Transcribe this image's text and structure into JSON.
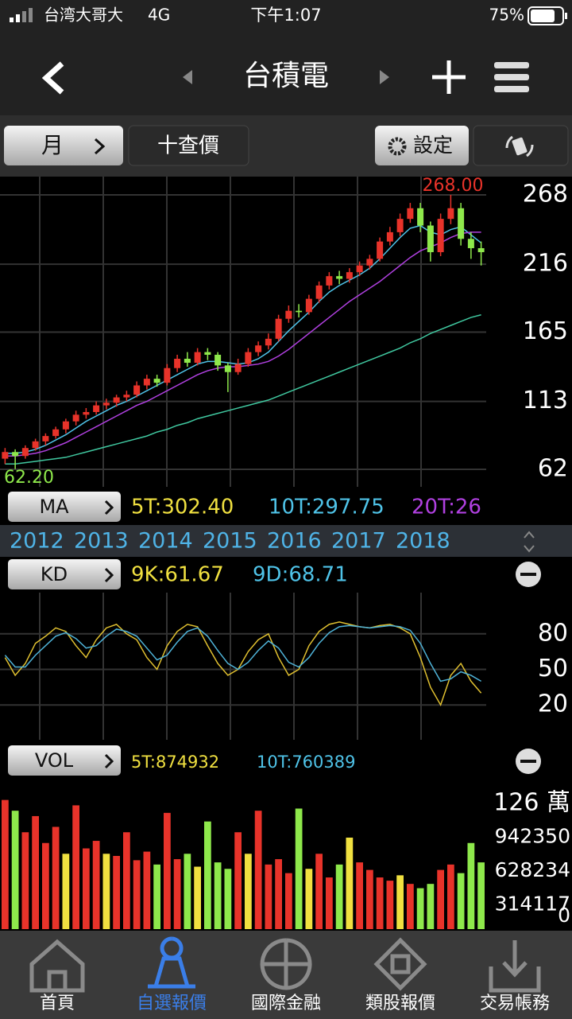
{
  "status_bar": {
    "carrier": "台湾大哥大",
    "network": "4G",
    "time": "下午1:07",
    "battery": "75%"
  },
  "nav": {
    "title": "台積電"
  },
  "toolbar": {
    "period": "月",
    "quote": "十查價",
    "settings": "設定"
  },
  "price_chart": {
    "type": "candlestick",
    "high_label": "268.00",
    "low_label": "62.20",
    "ylim": [
      62,
      268
    ],
    "yticks": [
      62,
      113,
      165,
      216,
      268
    ],
    "up_color": "#e8332a",
    "down_color": "#8ee84b",
    "candles": [
      [
        70,
        78,
        66,
        75
      ],
      [
        75,
        77,
        62.2,
        72
      ],
      [
        72,
        80,
        70,
        78
      ],
      [
        78,
        85,
        76,
        83
      ],
      [
        83,
        89,
        80,
        87
      ],
      [
        87,
        94,
        85,
        92
      ],
      [
        92,
        100,
        89,
        98
      ],
      [
        98,
        106,
        95,
        103
      ],
      [
        103,
        108,
        100,
        105
      ],
      [
        105,
        113,
        103,
        110
      ],
      [
        110,
        115,
        107,
        112
      ],
      [
        112,
        118,
        109,
        116
      ],
      [
        116,
        121,
        113,
        118
      ],
      [
        118,
        128,
        116,
        125
      ],
      [
        125,
        133,
        122,
        130
      ],
      [
        130,
        133,
        124,
        127
      ],
      [
        127,
        141,
        125,
        138
      ],
      [
        138,
        148,
        135,
        145
      ],
      [
        145,
        150,
        139,
        142
      ],
      [
        142,
        153,
        140,
        150
      ],
      [
        150,
        153,
        144,
        148
      ],
      [
        148,
        150,
        136,
        140
      ],
      [
        140,
        142,
        120,
        135
      ],
      [
        135,
        145,
        133,
        141
      ],
      [
        141,
        153,
        139,
        150
      ],
      [
        150,
        158,
        147,
        155
      ],
      [
        155,
        164,
        152,
        160
      ],
      [
        160,
        178,
        158,
        175
      ],
      [
        175,
        185,
        172,
        181
      ],
      [
        181,
        186,
        176,
        180
      ],
      [
        180,
        193,
        178,
        190
      ],
      [
        190,
        203,
        187,
        200
      ],
      [
        200,
        210,
        197,
        207
      ],
      [
        207,
        211,
        201,
        205
      ],
      [
        205,
        213,
        202,
        210
      ],
      [
        210,
        218,
        207,
        215
      ],
      [
        215,
        223,
        212,
        220
      ],
      [
        220,
        236,
        218,
        233
      ],
      [
        233,
        244,
        230,
        240
      ],
      [
        240,
        254,
        237,
        250
      ],
      [
        250,
        262,
        247,
        258
      ],
      [
        258,
        262,
        240,
        245
      ],
      [
        245,
        248,
        218,
        225
      ],
      [
        225,
        254,
        222,
        250
      ],
      [
        250,
        268,
        246,
        258
      ],
      [
        258,
        262,
        230,
        235
      ],
      [
        235,
        240,
        220,
        228
      ],
      [
        228,
        233,
        215,
        225
      ]
    ],
    "ma_lines": [
      {
        "color": "#4fc3e8",
        "values": [
          74,
          74,
          75,
          77,
          80,
          84,
          88,
          93,
          98,
          102,
          106,
          110,
          113,
          117,
          121,
          125,
          129,
          133,
          137,
          141,
          143,
          143,
          142,
          141,
          142,
          145,
          150,
          158,
          166,
          173,
          180,
          188,
          195,
          200,
          204,
          208,
          213,
          220,
          228,
          236,
          243,
          245,
          240,
          238,
          242,
          244,
          238,
          232
        ]
      },
      {
        "color": "#b040e0",
        "values": [
          72,
          72,
          73,
          74,
          76,
          79,
          82,
          86,
          90,
          94,
          98,
          102,
          106,
          110,
          113,
          117,
          121,
          125,
          129,
          133,
          136,
          138,
          139,
          139,
          140,
          141,
          143,
          147,
          152,
          158,
          164,
          170,
          176,
          182,
          188,
          193,
          198,
          203,
          209,
          215,
          221,
          226,
          229,
          232,
          236,
          239,
          240,
          240
        ]
      },
      {
        "color": "#40c8a0",
        "values": [
          66,
          66,
          67,
          68,
          69,
          70,
          71,
          73,
          75,
          77,
          79,
          81,
          83,
          85,
          87,
          90,
          92,
          95,
          97,
          100,
          102,
          104,
          106,
          108,
          110,
          112,
          114,
          117,
          120,
          123,
          126,
          129,
          132,
          135,
          138,
          141,
          144,
          147,
          150,
          153,
          157,
          160,
          164,
          167,
          170,
          173,
          176,
          178
        ]
      }
    ]
  },
  "ma_bar": {
    "button": "MA",
    "items": [
      {
        "label": "5T:302.40",
        "color": "#f0e040"
      },
      {
        "label": "10T:297.75",
        "color": "#4fc3e8"
      },
      {
        "label": "20T:26",
        "color": "#b040e0"
      }
    ]
  },
  "years": [
    "2012",
    "2013",
    "2014",
    "2015",
    "2016",
    "2017",
    "2018"
  ],
  "kd_bar": {
    "button": "KD",
    "items": [
      {
        "label": "9K:61.67",
        "color": "#f0e040"
      },
      {
        "label": "9D:68.71",
        "color": "#4fc3e8"
      }
    ]
  },
  "kd_chart": {
    "ylim": [
      0,
      100
    ],
    "yticks": [
      20,
      50,
      80
    ],
    "series": [
      {
        "color": "#e0c030",
        "values": [
          60,
          45,
          55,
          72,
          78,
          85,
          82,
          70,
          60,
          75,
          85,
          88,
          80,
          75,
          60,
          50,
          70,
          82,
          88,
          86,
          70,
          55,
          45,
          50,
          65,
          75,
          80,
          60,
          45,
          50,
          70,
          82,
          88,
          90,
          88,
          86,
          85,
          87,
          88,
          85,
          80,
          60,
          35,
          20,
          45,
          55,
          40,
          30
        ]
      },
      {
        "color": "#4fb3d8",
        "values": [
          62,
          52,
          52,
          62,
          70,
          78,
          81,
          76,
          68,
          70,
          78,
          84,
          82,
          78,
          68,
          58,
          62,
          73,
          82,
          85,
          78,
          66,
          55,
          50,
          56,
          66,
          74,
          68,
          56,
          52,
          60,
          72,
          81,
          86,
          87,
          86,
          85,
          86,
          87,
          86,
          83,
          72,
          55,
          40,
          42,
          48,
          45,
          40
        ]
      }
    ]
  },
  "vol_bar": {
    "button": "VOL",
    "items": [
      {
        "label": "5T:874932",
        "color": "#f0e040"
      },
      {
        "label": "10T:760389",
        "color": "#4fc3e8"
      }
    ]
  },
  "vol_chart": {
    "ylim": [
      0,
      1256467
    ],
    "yticks": [
      {
        "value": 1256467,
        "label": "126 萬"
      },
      942350,
      628234,
      314117,
      0
    ],
    "colors": {
      "up": "#e8332a",
      "down": "#8ee84b",
      "flat": "#f0e040"
    },
    "values": [
      1200000,
      1100000,
      900000,
      1050000,
      800000,
      950000,
      700000,
      1150000,
      750000,
      820000,
      700000,
      680000,
      900000,
      640000,
      720000,
      600000,
      1080000,
      650000,
      700000,
      580000,
      1000000,
      620000,
      560000,
      900000,
      700000,
      1100000,
      600000,
      650000,
      520000,
      1120000,
      560000,
      700000,
      480000,
      600000,
      850000,
      620000,
      550000,
      480000,
      450000,
      500000,
      420000,
      380000,
      420000,
      550000,
      600000,
      520000,
      800000,
      620000
    ],
    "kinds": [
      "up",
      "down",
      "up",
      "up",
      "up",
      "up",
      "flat",
      "up",
      "up",
      "up",
      "flat",
      "up",
      "up",
      "up",
      "up",
      "down",
      "up",
      "up",
      "down",
      "flat",
      "down",
      "down",
      "down",
      "up",
      "flat",
      "up",
      "up",
      "up",
      "up",
      "down",
      "flat",
      "up",
      "up",
      "down",
      "flat",
      "up",
      "up",
      "up",
      "up",
      "flat",
      "up",
      "down",
      "down",
      "up",
      "up",
      "down",
      "down",
      "down"
    ]
  },
  "tabs": [
    "首頁",
    "自選報價",
    "國際金融",
    "類股報價",
    "交易帳務"
  ],
  "active_tab": 1
}
